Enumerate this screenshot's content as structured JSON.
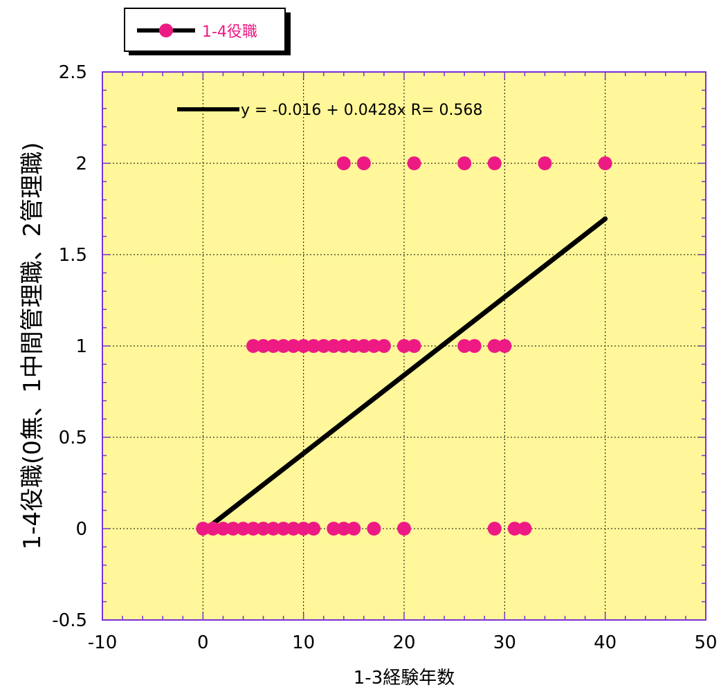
{
  "chart_data": {
    "type": "scatter",
    "title": "",
    "xlabel": "1-3経験年数",
    "ylabel": "1-4役職(0無、1中間管理職、2管理職)",
    "xlim": [
      -10,
      50
    ],
    "ylim": [
      -0.5,
      2.5
    ],
    "x_ticks": [
      "-10",
      "0",
      "10",
      "20",
      "30",
      "40",
      "50"
    ],
    "y_ticks": [
      "-0.5",
      "0",
      "0.5",
      "1",
      "1.5",
      "2",
      "2.5"
    ],
    "grid": true,
    "plot_background": "#fff799",
    "frame_color": "#7b2fd6",
    "legend": {
      "position": "top-left",
      "entries": [
        "1-4役職"
      ]
    },
    "series": [
      {
        "name": "1-4役職",
        "color": "#ee1a84",
        "points": [
          [
            0,
            0
          ],
          [
            1,
            0
          ],
          [
            2,
            0
          ],
          [
            3,
            0
          ],
          [
            4,
            0
          ],
          [
            5,
            0
          ],
          [
            6,
            0
          ],
          [
            7,
            0
          ],
          [
            8,
            0
          ],
          [
            9,
            0
          ],
          [
            10,
            0
          ],
          [
            11,
            0
          ],
          [
            13,
            0
          ],
          [
            14,
            0
          ],
          [
            15,
            0
          ],
          [
            17,
            0
          ],
          [
            20,
            0
          ],
          [
            29,
            0
          ],
          [
            31,
            0
          ],
          [
            32,
            0
          ],
          [
            5,
            1
          ],
          [
            6,
            1
          ],
          [
            7,
            1
          ],
          [
            8,
            1
          ],
          [
            9,
            1
          ],
          [
            10,
            1
          ],
          [
            11,
            1
          ],
          [
            12,
            1
          ],
          [
            13,
            1
          ],
          [
            14,
            1
          ],
          [
            15,
            1
          ],
          [
            16,
            1
          ],
          [
            17,
            1
          ],
          [
            18,
            1
          ],
          [
            20,
            1
          ],
          [
            21,
            1
          ],
          [
            26,
            1
          ],
          [
            27,
            1
          ],
          [
            29,
            1
          ],
          [
            30,
            1
          ],
          [
            14,
            2
          ],
          [
            16,
            2
          ],
          [
            21,
            2
          ],
          [
            26,
            2
          ],
          [
            29,
            2
          ],
          [
            34,
            2
          ],
          [
            40,
            2
          ]
        ]
      }
    ],
    "fit": {
      "intercept": -0.016,
      "slope": 0.0428,
      "x_range": [
        1,
        40
      ],
      "color": "#000000",
      "label": "y = -0.016 + 0.0428x   R= 0.568"
    }
  }
}
